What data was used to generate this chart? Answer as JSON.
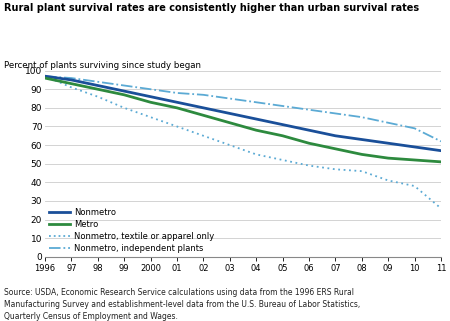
{
  "title": "Rural plant survival rates are consistently higher than urban survival rates",
  "ylabel": "Percent of plants surviving since study began",
  "source": "Source: USDA, Economic Research Service calculations using data from the 1996 ERS Rural\nManufacturing Survey and establishment-level data from the U.S. Bureau of Labor Statistics,\nQuarterly Census of Employment and Wages.",
  "years": [
    1996,
    1997,
    1998,
    1999,
    2000,
    2001,
    2002,
    2003,
    2004,
    2005,
    2006,
    2007,
    2008,
    2009,
    2010,
    2011
  ],
  "nonmetro": [
    97,
    95,
    92,
    89,
    86,
    83,
    80,
    77,
    74,
    71,
    68,
    65,
    63,
    61,
    59,
    57
  ],
  "metro": [
    96,
    93,
    90,
    87,
    83,
    80,
    76,
    72,
    68,
    65,
    61,
    58,
    55,
    53,
    52,
    51
  ],
  "textile": [
    97,
    91,
    86,
    80,
    75,
    70,
    65,
    60,
    55,
    52,
    49,
    47,
    46,
    41,
    38,
    26
  ],
  "independent": [
    97,
    96,
    94,
    92,
    90,
    88,
    87,
    85,
    83,
    81,
    79,
    77,
    75,
    72,
    69,
    62
  ],
  "ylim": [
    0,
    100
  ],
  "yticks": [
    0,
    10,
    20,
    30,
    40,
    50,
    60,
    70,
    80,
    90,
    100
  ],
  "xtick_labels": [
    "1996",
    "97",
    "98",
    "99",
    "2000",
    "01",
    "02",
    "03",
    "04",
    "05",
    "06",
    "07",
    "08",
    "09",
    "10",
    "11"
  ],
  "color_nonmetro": "#1a4f99",
  "color_metro": "#2d8a3e",
  "color_textile": "#5baad4",
  "color_independent": "#5baad4",
  "color_grid": "#cccccc",
  "color_background": "#ffffff"
}
